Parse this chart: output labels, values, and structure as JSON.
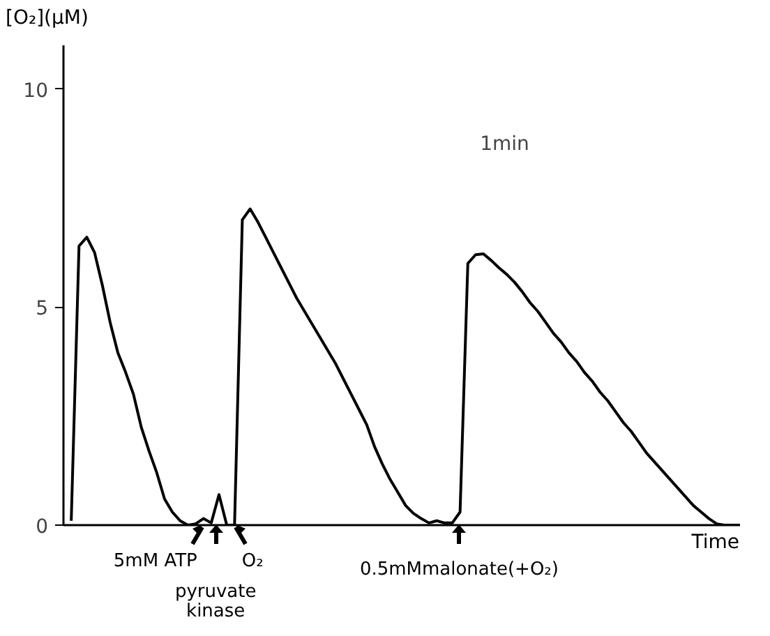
{
  "chart_data": {
    "type": "line",
    "ylabel": "[O₂](μM)",
    "xlabel": "Time",
    "categories": [
      null,
      null,
      null,
      null,
      null,
      null,
      null,
      null,
      null,
      null,
      null,
      null,
      null,
      null,
      null,
      null,
      null,
      null,
      null,
      null,
      null,
      null,
      null,
      null,
      null,
      null,
      null,
      null,
      null,
      null,
      null,
      null,
      null,
      null,
      null,
      null,
      null,
      null,
      null,
      null,
      null,
      null,
      null,
      null,
      null,
      null,
      null,
      null,
      null,
      null,
      null,
      null,
      null,
      null,
      null,
      null,
      null,
      null,
      null,
      null,
      null,
      null,
      null,
      null,
      null,
      null,
      null,
      null,
      null,
      null,
      null,
      null,
      null,
      null,
      null,
      null,
      null,
      null,
      null,
      null,
      null,
      null,
      null,
      null,
      null,
      null,
      null,
      null
    ],
    "series": [
      {
        "color": "#000000",
        "values": [
          null,
          0.1,
          6.4,
          6.6,
          6.25,
          5.5,
          4.65,
          3.95,
          3.5,
          3.0,
          2.25,
          1.7,
          1.2,
          0.6,
          0.3,
          0.1,
          0,
          0.03,
          0.15,
          0.05,
          0.7,
          0,
          0,
          7.0,
          7.25,
          6.95,
          6.6,
          6.25,
          5.9,
          5.55,
          5.2,
          4.9,
          4.6,
          4.3,
          4.0,
          3.7,
          3.35,
          3.0,
          2.65,
          2.3,
          1.8,
          1.4,
          1.05,
          0.75,
          0.45,
          0.27,
          0.15,
          0.05,
          0.1,
          0.05,
          0.05,
          0.3,
          6.0,
          6.2,
          6.22,
          6.07,
          5.9,
          5.75,
          5.57,
          5.35,
          5.1,
          4.9,
          4.65,
          4.4,
          4.2,
          3.95,
          3.75,
          3.5,
          3.3,
          3.05,
          2.85,
          2.6,
          2.35,
          2.15,
          1.9,
          1.65,
          1.45,
          1.25,
          1.05,
          0.85,
          0.65,
          0.45,
          0.3,
          0.15,
          0.03,
          0,
          0,
          0
        ]
      }
    ],
    "ylim": [
      0,
      11
    ],
    "yticks": [
      0,
      5,
      10
    ],
    "tick_labels": "y",
    "grid": false,
    "line_style": "solid",
    "annotations": [
      "1min",
      "5mM ATP",
      "pyruvate kinase",
      "O₂",
      "0.5mMmalonate(+O₂)"
    ]
  }
}
